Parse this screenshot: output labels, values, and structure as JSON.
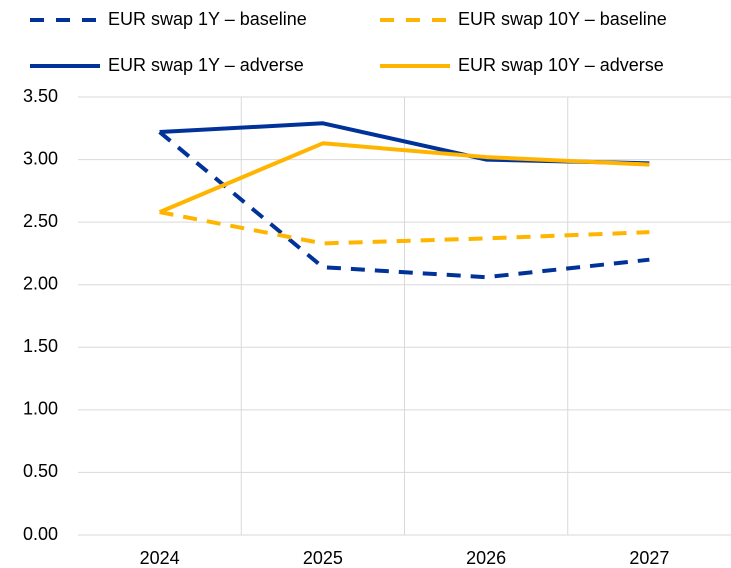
{
  "chart_data": {
    "type": "line",
    "categories": [
      "2024",
      "2025",
      "2026",
      "2027"
    ],
    "series": [
      {
        "name": "EUR swap 1Y – baseline",
        "color": "#003299",
        "dashed": true,
        "values": [
          3.22,
          2.14,
          2.06,
          2.2
        ]
      },
      {
        "name": "EUR swap 10Y – baseline",
        "color": "#FFB400",
        "dashed": true,
        "values": [
          2.58,
          2.33,
          2.37,
          2.42
        ]
      },
      {
        "name": "EUR swap 1Y – adverse",
        "color": "#003299",
        "dashed": false,
        "values": [
          3.22,
          3.29,
          3.0,
          2.97
        ]
      },
      {
        "name": "EUR swap 10Y – adverse",
        "color": "#FFB400",
        "dashed": false,
        "values": [
          2.58,
          3.13,
          3.02,
          2.96
        ]
      }
    ],
    "ylim": [
      0,
      3.5
    ],
    "yticks": [
      {
        "value": 0,
        "label": "0.00"
      },
      {
        "value": 0.5,
        "label": "0.50"
      },
      {
        "value": 1,
        "label": "1.00"
      },
      {
        "value": 1.5,
        "label": "1.50"
      },
      {
        "value": 2,
        "label": "2.00"
      },
      {
        "value": 2.5,
        "label": "2.50"
      },
      {
        "value": 3,
        "label": "3.00"
      },
      {
        "value": 3.5,
        "label": "3.50"
      }
    ],
    "grid": true,
    "legend": "top"
  }
}
